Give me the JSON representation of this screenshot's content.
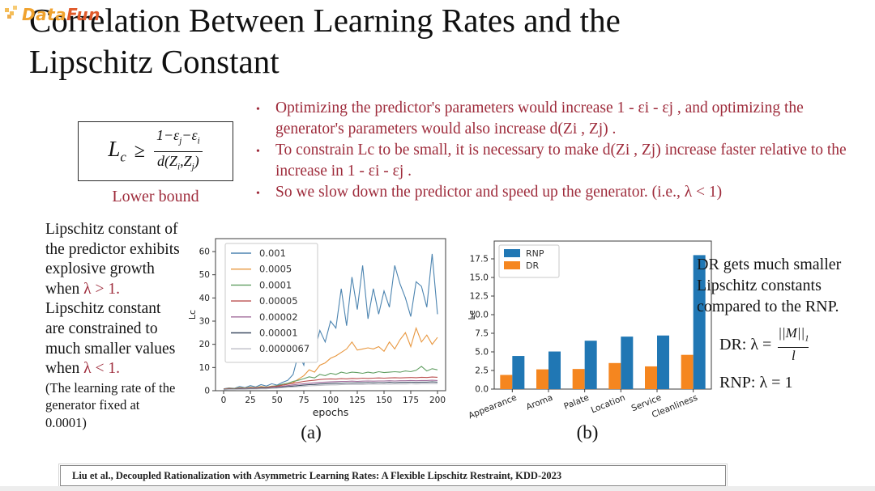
{
  "ui": {
    "bullet_char": "•"
  },
  "colors": {
    "accent_maroon": "#9e2b3b",
    "rnp_blue": "#2077b4",
    "dr_orange": "#f5861f"
  },
  "logo": {
    "part1": "Data",
    "part2": "Fun"
  },
  "title": {
    "line1": "Correlation Between Learning Rates and the",
    "line2": "Lipschitz Constant"
  },
  "formula_box": {
    "lhs": "L",
    "lhs_sub": "c",
    "rel": "≥",
    "num1": "1−ε",
    "num_sub1": "j",
    "num2": "−ε",
    "num_sub2": "i",
    "den1": "d(Z",
    "den_sub1": "i",
    "den2": ",Z",
    "den_sub2": "j",
    "den3": ")",
    "caption": "Lower bound"
  },
  "bullets": [
    {
      "text": "Optimizing the predictor's parameters would increase 1 - εi - εj , and optimizing the generator's parameters would also increase d(Zi , Zj) ."
    },
    {
      "text": "To constrain Lc to be small, it is necessary to make d(Zi , Zj) increase faster relative to the increase in 1 - εi - εj ."
    },
    {
      "text": "So we slow down the predictor and speed up the generator. (i.e., λ < 1)"
    }
  ],
  "left_note": {
    "l1": "Lipschitz constant of",
    "l2": "the predictor exhibits",
    "l3": "explosive growth",
    "l4_pre": "when ",
    "l4_red": "λ > 1.",
    "l5": "Lipschitz constant",
    "l6": "are constrained to",
    "l7": "much smaller values",
    "l8_pre": "when ",
    "l8_red": "λ < 1.",
    "l9": "(The learning rate of the",
    "l10": "generator fixed at",
    "l11": "0.0001)"
  },
  "right_note": {
    "l1": "DR gets much smaller",
    "l2": "Lipschitz constants",
    "l3": "compared to the RNP.",
    "dr_label": "DR: λ =",
    "dr_num": "||M||",
    "dr_num_sub": "1",
    "dr_den": "l",
    "rnp": "RNP: λ = 1"
  },
  "captions": {
    "a": "(a)",
    "b": "(b)"
  },
  "citation": "Liu et al., Decoupled Rationalization with Asymmetric Learning Rates: A Flexible Lipschitz Restraint, KDD-2023",
  "chart_data": [
    {
      "type": "line",
      "xlabel": "epochs",
      "ylabel": "Lc",
      "xlim": [
        0,
        200
      ],
      "ylim": [
        0,
        62
      ],
      "x_ticks": [
        0,
        25,
        50,
        75,
        100,
        125,
        150,
        175,
        200
      ],
      "y_ticks": [
        0,
        10,
        20,
        30,
        40,
        50,
        60
      ],
      "legend_position": "upper left",
      "x_step": 5,
      "series": [
        {
          "name": "0.001",
          "color": "#4c84b0",
          "values": [
            0.8,
            1.2,
            1.0,
            1.8,
            1.3,
            2.2,
            1.6,
            2.6,
            2.0,
            3.0,
            2.4,
            3.6,
            4.5,
            7,
            16,
            11,
            27,
            17,
            26,
            21,
            30,
            27,
            44,
            28,
            49,
            35,
            54,
            31,
            44,
            33,
            43,
            36,
            54,
            46,
            40,
            32,
            47,
            45,
            36,
            59,
            33
          ]
        },
        {
          "name": "0.0005",
          "color": "#e8973f",
          "values": [
            0.7,
            1.0,
            0.9,
            1.3,
            1.1,
            1.5,
            1.3,
            1.8,
            1.5,
            2.0,
            1.8,
            2.4,
            2.8,
            3.5,
            5,
            6.5,
            9,
            8,
            11,
            12,
            14,
            15,
            16.5,
            18,
            21,
            17.5,
            18,
            18.5,
            18,
            19,
            17,
            21,
            18,
            22,
            25,
            19,
            27,
            21,
            24,
            20,
            23
          ]
        },
        {
          "name": "0.0001",
          "color": "#629f63",
          "values": [
            0.6,
            0.9,
            0.8,
            1.1,
            1.0,
            1.4,
            1.2,
            1.6,
            1.4,
            1.9,
            2.2,
            2.8,
            3.2,
            4.0,
            4.5,
            5.2,
            6,
            5.5,
            7,
            6.5,
            7.5,
            7,
            8,
            7.5,
            8,
            7.8,
            7.5,
            8,
            7.6,
            8.2,
            7.8,
            8,
            8.2,
            8,
            8.5,
            8.2,
            8.8,
            10.5,
            8.5,
            9.5,
            9
          ]
        },
        {
          "name": "0.00005",
          "color": "#bb4f4f",
          "values": [
            0.6,
            0.8,
            0.7,
            1.0,
            0.9,
            1.2,
            1.1,
            1.4,
            1.3,
            1.7,
            2.0,
            2.4,
            2.8,
            3.2,
            3.6,
            4.0,
            4.3,
            4.5,
            4.8,
            5.0,
            5.1,
            5.0,
            5.2,
            5.1,
            5.3,
            5.2,
            5.4,
            5.3,
            5.4,
            5.5,
            5.4,
            5.5,
            5.6,
            5.5,
            5.6,
            5.7,
            5.6,
            5.8,
            5.7,
            5.9,
            5.8
          ]
        },
        {
          "name": "0.00002",
          "color": "#a06a9a",
          "values": [
            0.5,
            0.7,
            0.6,
            0.9,
            0.8,
            1.0,
            0.9,
            1.2,
            1.1,
            1.4,
            1.6,
            1.9,
            2.2,
            2.5,
            2.8,
            3.0,
            3.2,
            3.4,
            3.6,
            3.7,
            3.8,
            3.9,
            4.0,
            4.0,
            4.1,
            4.0,
            4.1,
            4.2,
            4.1,
            4.2,
            4.2,
            4.3,
            4.2,
            4.3,
            4.3,
            4.4,
            4.3,
            4.4,
            4.4,
            4.5,
            4.4
          ]
        },
        {
          "name": "0.00001",
          "color": "#3f4d63",
          "values": [
            0.5,
            0.6,
            0.6,
            0.8,
            0.7,
            0.9,
            0.8,
            1.0,
            1.0,
            1.2,
            1.4,
            1.6,
            1.8,
            2.0,
            2.2,
            2.4,
            2.6,
            2.7,
            2.9,
            3.0,
            3.1,
            3.2,
            3.2,
            3.3,
            3.3,
            3.4,
            3.4,
            3.5,
            3.4,
            3.5,
            3.5,
            3.6,
            3.5,
            3.6,
            3.6,
            3.7,
            3.6,
            3.7,
            3.7,
            3.8,
            3.7
          ]
        },
        {
          "name": "0.0000067",
          "color": "#bcbcc4",
          "values": [
            0.4,
            0.5,
            0.5,
            0.6,
            0.6,
            0.7,
            0.7,
            0.8,
            0.8,
            1.0,
            1.1,
            1.3,
            1.5,
            1.6,
            1.8,
            1.9,
            2.1,
            2.2,
            2.3,
            2.4,
            2.5,
            2.5,
            2.6,
            2.6,
            2.7,
            2.7,
            2.7,
            2.8,
            2.8,
            2.8,
            2.9,
            2.8,
            2.9,
            2.9,
            2.9,
            3.0,
            2.9,
            3.0,
            3.0,
            3.0,
            3.0
          ]
        }
      ]
    },
    {
      "type": "bar",
      "ylabel": "Lc",
      "categories": [
        "Appearance",
        "Aroma",
        "Palate",
        "Location",
        "Service",
        "Cleanliness"
      ],
      "y_ticks": [
        "0.0",
        "2.5",
        "5.0",
        "7.5",
        "10.0",
        "12.5",
        "15.0",
        "17.5"
      ],
      "ylim": [
        0,
        19
      ],
      "legend_position": "upper left",
      "series": [
        {
          "name": "RNP",
          "color": "#2077b4",
          "values": [
            4.45,
            5.05,
            6.5,
            7.05,
            7.2,
            18.0
          ]
        },
        {
          "name": "DR",
          "color": "#f5861f",
          "values": [
            1.9,
            2.65,
            2.7,
            3.5,
            3.05,
            4.6
          ]
        }
      ]
    }
  ]
}
